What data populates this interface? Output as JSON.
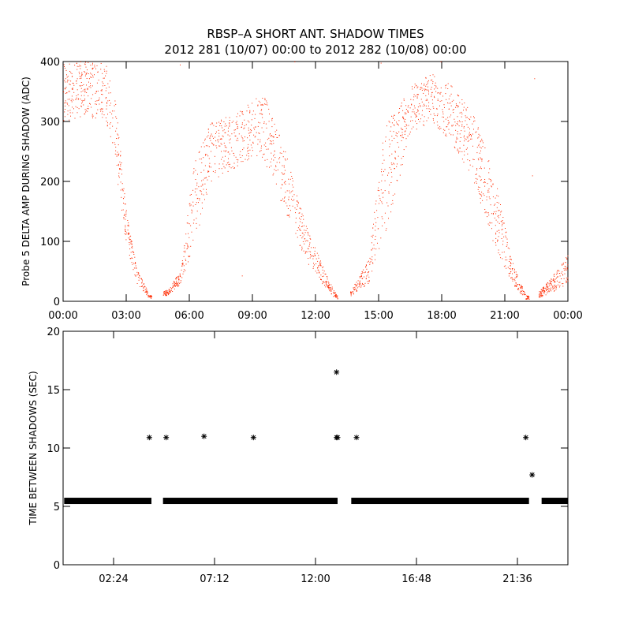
{
  "title_line1": "RBSP–A SHORT ANT. SHADOW TIMES",
  "title_line2": "2012 281 (10/07) 00:00 to 2012 282 (10/08) 00:00",
  "colors": {
    "top_points": "#ff2a00",
    "bottom_points": "#000000"
  },
  "chart_data": [
    {
      "type": "scatter",
      "name": "shadow-amplitude",
      "xlabel": "",
      "ylabel": "Probe 5 DELTA AMP DURING SHADOW (ADC)",
      "xlim": [
        0,
        24
      ],
      "ylim": [
        0,
        400
      ],
      "x_ticks": [
        0,
        3,
        6,
        9,
        12,
        15,
        18,
        21,
        24
      ],
      "x_tick_labels": [
        "00:00",
        "03:00",
        "06:00",
        "09:00",
        "12:00",
        "15:00",
        "18:00",
        "21:00",
        "00:00"
      ],
      "y_ticks": [
        0,
        100,
        200,
        300,
        400
      ],
      "y_tick_labels": [
        "0",
        "100",
        "200",
        "300",
        "400"
      ],
      "grid": false,
      "marker": "dot",
      "points_description": "Dense cloud of red dots (~1 per 5.5 s); selected envelope samples below (x in hours, y in ADC)",
      "envelope": [
        {
          "x": 0.0,
          "y_low": 300,
          "y_high": 400
        },
        {
          "x": 1.0,
          "y_low": 310,
          "y_high": 400
        },
        {
          "x": 2.0,
          "y_low": 300,
          "y_high": 400
        },
        {
          "x": 2.5,
          "y_low": 220,
          "y_high": 330
        },
        {
          "x": 3.0,
          "y_low": 90,
          "y_high": 150
        },
        {
          "x": 3.5,
          "y_low": 30,
          "y_high": 55
        },
        {
          "x": 4.1,
          "y_low": 5,
          "y_high": 10
        },
        {
          "x": 5.0,
          "y_low": 10,
          "y_high": 20
        },
        {
          "x": 5.6,
          "y_low": 30,
          "y_high": 55
        },
        {
          "x": 6.2,
          "y_low": 90,
          "y_high": 230
        },
        {
          "x": 7.0,
          "y_low": 200,
          "y_high": 300
        },
        {
          "x": 8.5,
          "y_low": 230,
          "y_high": 320
        },
        {
          "x": 9.5,
          "y_low": 240,
          "y_high": 350
        },
        {
          "x": 10.5,
          "y_low": 150,
          "y_high": 260
        },
        {
          "x": 11.5,
          "y_low": 70,
          "y_high": 130
        },
        {
          "x": 12.5,
          "y_low": 20,
          "y_high": 45
        },
        {
          "x": 13.0,
          "y_low": 3,
          "y_high": 10
        },
        {
          "x": 13.7,
          "y_low": 10,
          "y_high": 20
        },
        {
          "x": 14.5,
          "y_low": 30,
          "y_high": 70
        },
        {
          "x": 15.3,
          "y_low": 110,
          "y_high": 300
        },
        {
          "x": 16.5,
          "y_low": 280,
          "y_high": 360
        },
        {
          "x": 17.5,
          "y_low": 300,
          "y_high": 380
        },
        {
          "x": 18.5,
          "y_low": 260,
          "y_high": 360
        },
        {
          "x": 19.5,
          "y_low": 200,
          "y_high": 310
        },
        {
          "x": 20.5,
          "y_low": 90,
          "y_high": 220
        },
        {
          "x": 21.3,
          "y_low": 30,
          "y_high": 70
        },
        {
          "x": 22.0,
          "y_low": 3,
          "y_high": 10
        },
        {
          "x": 22.5,
          "y_low": 5,
          "y_high": 12
        },
        {
          "x": 23.2,
          "y_low": 15,
          "y_high": 40
        },
        {
          "x": 24.0,
          "y_low": 30,
          "y_high": 80
        }
      ],
      "outliers": [
        {
          "x": 5.55,
          "y": 395
        },
        {
          "x": 11.0,
          "y": 400
        },
        {
          "x": 15.1,
          "y": 398
        },
        {
          "x": 17.95,
          "y": 400
        },
        {
          "x": 22.4,
          "y": 372
        },
        {
          "x": 8.5,
          "y": 43
        },
        {
          "x": 22.3,
          "y": 210
        }
      ]
    },
    {
      "type": "scatter",
      "name": "time-between-shadows",
      "xlabel": "",
      "ylabel": "TIME BETWEEN SHADOWS (SEC)",
      "xlim": [
        0,
        24
      ],
      "ylim": [
        0,
        20
      ],
      "x_ticks": [
        2.4,
        7.2,
        12.0,
        16.8,
        21.6
      ],
      "x_tick_labels": [
        "02:24",
        "07:12",
        "12:00",
        "16:48",
        "21:36"
      ],
      "y_ticks": [
        0,
        5,
        10,
        15,
        20
      ],
      "y_tick_labels": [
        "0",
        "5",
        "10",
        "15",
        "20"
      ],
      "grid": false,
      "marker": "asterisk",
      "baseline": {
        "y": 5.47,
        "segments": [
          [
            0.05,
            4.2
          ],
          [
            4.75,
            13.05
          ],
          [
            13.7,
            22.15
          ],
          [
            22.75,
            24.0
          ]
        ]
      },
      "points": [
        {
          "x": 4.1,
          "y": 10.9
        },
        {
          "x": 4.9,
          "y": 10.9
        },
        {
          "x": 6.7,
          "y": 11.0
        },
        {
          "x": 9.05,
          "y": 10.9
        },
        {
          "x": 13.0,
          "y": 16.5
        },
        {
          "x": 13.0,
          "y": 10.9
        },
        {
          "x": 13.05,
          "y": 10.9
        },
        {
          "x": 13.95,
          "y": 10.9
        },
        {
          "x": 22.0,
          "y": 10.9
        },
        {
          "x": 22.3,
          "y": 7.7
        }
      ]
    }
  ]
}
